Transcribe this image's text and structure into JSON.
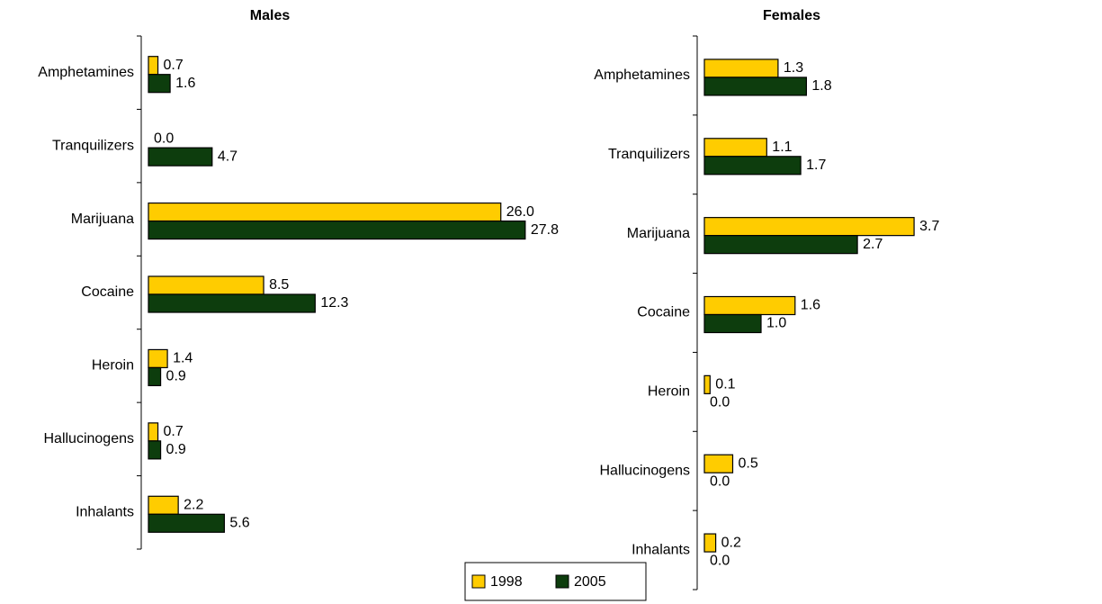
{
  "chart_data": [
    {
      "type": "bar",
      "orientation": "horizontal",
      "title": "Males",
      "categories": [
        "Amphetamines",
        "Tranquilizers",
        "Marijuana",
        "Cocaine",
        "Heroin",
        "Hallucinogens",
        "Inhalants"
      ],
      "xlim": [
        0,
        30
      ],
      "series": [
        {
          "color": "#ffcc00",
          "values": [
            0.7,
            0,
            26,
            8.5,
            1.4,
            0.7,
            2.2
          ],
          "value_labels": [
            "0.7",
            "0.0",
            "26.0",
            "8.5",
            "1.4",
            "0.7",
            "2.2"
          ]
        },
        {
          "color": "#0d3d0d",
          "values": [
            1.6,
            4.7,
            27.8,
            12.3,
            0.9,
            0.9,
            5.6
          ],
          "value_labels": [
            "1.6",
            "4.7",
            "27.8",
            "12.3",
            "0.9",
            "0.9",
            "5.6"
          ]
        }
      ]
    },
    {
      "type": "bar",
      "orientation": "horizontal",
      "title": "Females",
      "categories": [
        "Amphetamines",
        "Tranquilizers",
        "Marijuana",
        "Cocaine",
        "Heroin",
        "Hallucinogens",
        "Inhalants"
      ],
      "xlim": [
        0,
        4
      ],
      "series": [
        {
          "color": "#ffcc00",
          "values": [
            1.3,
            1.1,
            3.7,
            1.6,
            0.1,
            0.5,
            0.2
          ],
          "value_labels": [
            "1.3",
            "1.1",
            "3.7",
            "1.6",
            "0.1",
            "0.5",
            "0.2"
          ]
        },
        {
          "color": "#0d3d0d",
          "values": [
            1.8,
            1.7,
            2.7,
            1.0,
            0,
            0,
            0
          ],
          "value_labels": [
            "1.8",
            "1.7",
            "2.7",
            "1.0",
            "0.0",
            "0.0",
            "0.0"
          ]
        }
      ]
    }
  ],
  "legend": {
    "items": [
      {
        "name": "1998",
        "color": "#ffcc00"
      },
      {
        "name": "2005",
        "color": "#0d3d0d"
      }
    ]
  }
}
